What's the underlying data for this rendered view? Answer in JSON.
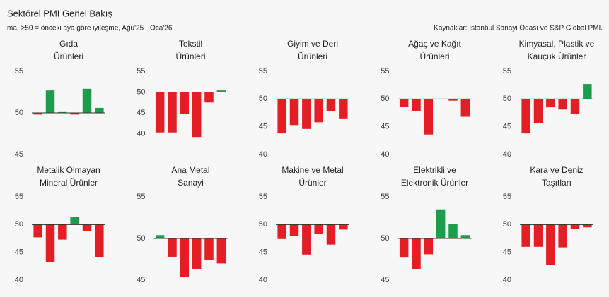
{
  "header": {
    "title": "Sektörel PMI Genel Bakış",
    "subtitle": "ma, >50 = önceki aya göre iyileşme, Ağu'25 - Oca'26",
    "source": "Kaynaklar: İstanbul Sanayi Odası ve S&P Global PMI."
  },
  "chart_data": [
    {
      "type": "bar",
      "title": [
        "Gıda",
        "Ürünleri"
      ],
      "values": [
        49.8,
        52.7,
        50.1,
        49.8,
        52.9,
        50.6
      ],
      "ylim": [
        45,
        55
      ],
      "yticks": [
        45,
        50,
        55
      ],
      "baseline": 50,
      "color_up": "#1e9b4b",
      "color_down": "#e31e24"
    },
    {
      "type": "bar",
      "title": [
        "Tekstil",
        "Ürünleri"
      ],
      "values": [
        40.3,
        40.3,
        44.8,
        39.2,
        47.5,
        50.4
      ],
      "ylim": [
        35,
        55
      ],
      "yticks": [
        40,
        45,
        50,
        55
      ],
      "baseline": 50,
      "color_up": "#1e9b4b",
      "color_down": "#e31e24"
    },
    {
      "type": "bar",
      "title": [
        "Giyim ve Deri",
        "Ürünleri"
      ],
      "values": [
        43.8,
        45.3,
        44.6,
        45.8,
        47.8,
        46.5
      ],
      "ylim": [
        40,
        55
      ],
      "yticks": [
        40,
        45,
        50,
        55
      ],
      "baseline": 50,
      "color_up": "#1e9b4b",
      "color_down": "#e31e24"
    },
    {
      "type": "bar",
      "title": [
        "Ağaç ve Kağıt",
        "Ürünleri"
      ],
      "values": [
        48.6,
        47.8,
        43.6,
        50.0,
        49.7,
        46.8
      ],
      "ylim": [
        40,
        55
      ],
      "yticks": [
        40,
        45,
        50,
        55
      ],
      "baseline": 50,
      "color_up": "#1e9b4b",
      "color_down": "#e31e24"
    },
    {
      "type": "bar",
      "title": [
        "Kimyasal, Plastik ve",
        "Kauçuk Ürünler"
      ],
      "values": [
        43.8,
        45.6,
        48.5,
        48.1,
        47.3,
        52.7
      ],
      "ylim": [
        40,
        55
      ],
      "yticks": [
        40,
        45,
        50,
        55
      ],
      "baseline": 50,
      "color_up": "#1e9b4b",
      "color_down": "#e31e24"
    },
    {
      "type": "bar",
      "title": [
        "Metalik Olmayan",
        "Mineral Ürünler"
      ],
      "values": [
        47.7,
        43.2,
        47.3,
        51.4,
        48.8,
        44.1
      ],
      "ylim": [
        40,
        55
      ],
      "yticks": [
        40,
        45,
        50,
        55
      ],
      "baseline": 50,
      "color_up": "#1e9b4b",
      "color_down": "#e31e24"
    },
    {
      "type": "bar",
      "title": [
        "Ana Metal",
        "Sanayi"
      ],
      "values": [
        50.4,
        47.8,
        45.4,
        46.3,
        47.4,
        47.0
      ],
      "ylim": [
        45,
        55
      ],
      "yticks": [
        45,
        50,
        55
      ],
      "baseline": 50,
      "color_up": "#1e9b4b",
      "color_down": "#e31e24"
    },
    {
      "type": "bar",
      "title": [
        "Makine ve Metal",
        "Ürünler"
      ],
      "values": [
        47.4,
        47.9,
        44.6,
        48.3,
        46.4,
        49.1
      ],
      "ylim": [
        40,
        55
      ],
      "yticks": [
        40,
        45,
        50,
        55
      ],
      "baseline": 50,
      "color_up": "#1e9b4b",
      "color_down": "#e31e24"
    },
    {
      "type": "bar",
      "title": [
        "Elektrikli ve",
        "Elektronik Ürünler"
      ],
      "values": [
        47.7,
        46.3,
        48.1,
        53.5,
        51.7,
        50.4
      ],
      "ylim": [
        45,
        55
      ],
      "yticks": [
        45,
        50,
        55
      ],
      "baseline": 50,
      "color_up": "#1e9b4b",
      "color_down": "#e31e24"
    },
    {
      "type": "bar",
      "title": [
        "Kara ve Deniz",
        "Taşıtları"
      ],
      "values": [
        46.0,
        46.0,
        42.7,
        45.9,
        49.2,
        49.5
      ],
      "ylim": [
        40,
        55
      ],
      "yticks": [
        40,
        45,
        50,
        55
      ],
      "baseline": 50,
      "color_up": "#1e9b4b",
      "color_down": "#e31e24"
    }
  ]
}
